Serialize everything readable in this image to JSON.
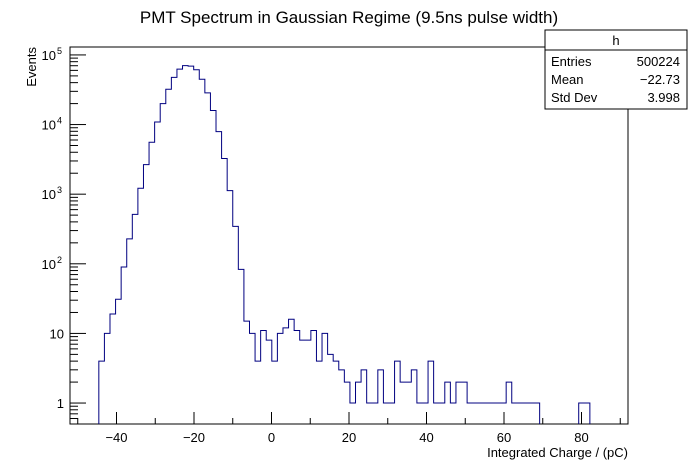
{
  "chart_data": {
    "type": "histogram",
    "title": "PMT Spectrum in Gaussian Regime (9.5ns pulse width)",
    "xlabel": "Integrated Charge / (pC)",
    "ylabel": "Events",
    "xlim": [
      -52,
      92
    ],
    "ylim": [
      0.5,
      130000
    ],
    "y_scale": "log",
    "x_ticks": [
      -40,
      -20,
      0,
      20,
      40,
      60,
      80
    ],
    "x_tick_labels": [
      "−40",
      "−20",
      "0",
      "20",
      "40",
      "60",
      "80"
    ],
    "y_ticks": [
      {
        "value": 1,
        "label": "1",
        "exp": ""
      },
      {
        "value": 10,
        "label": "10",
        "exp": ""
      },
      {
        "value": 100,
        "label": "10",
        "exp": "2"
      },
      {
        "value": 1000,
        "label": "10",
        "exp": "3"
      },
      {
        "value": 10000,
        "label": "10",
        "exp": "4"
      },
      {
        "value": 100000,
        "label": "10",
        "exp": "5"
      }
    ],
    "bin_width": 1.44,
    "bins_x_low": [
      -44.56,
      -43.12,
      -41.68,
      -40.24,
      -38.8,
      -37.36,
      -35.92,
      -34.48,
      -33.04,
      -31.6,
      -30.16,
      -28.72,
      -27.28,
      -25.84,
      -24.4,
      -22.96,
      -21.52,
      -20.08,
      -18.64,
      -17.2,
      -15.76,
      -14.32,
      -12.88,
      -11.44,
      -10.0,
      -8.56,
      -7.12,
      -5.68,
      -4.24,
      -2.8,
      -1.36,
      0.08,
      1.52,
      2.96,
      4.4,
      5.84,
      7.28,
      8.72,
      10.16,
      11.6,
      13.04,
      14.48,
      15.92,
      17.36,
      18.8,
      20.24,
      21.68,
      23.12,
      24.56,
      26.0,
      27.44,
      28.88,
      30.32,
      31.76,
      33.2,
      34.64,
      36.08,
      37.52,
      38.96,
      40.4,
      41.84,
      43.28,
      44.72,
      46.16,
      47.6,
      49.04,
      50.48,
      51.92,
      53.36,
      54.8,
      56.24,
      57.68,
      59.12,
      60.56,
      62.0,
      63.44,
      64.88,
      66.32,
      67.76,
      79.28,
      80.72
    ],
    "counts": [
      4,
      10,
      19,
      31,
      90,
      228,
      513,
      1218,
      2660,
      5570,
      10880,
      20020,
      32150,
      47650,
      62470,
      70110,
      69110,
      61180,
      44650,
      28480,
      15940,
      7900,
      3250,
      1125,
      345,
      83,
      15,
      10,
      4,
      11,
      8,
      4,
      10,
      12,
      16,
      11,
      8,
      8,
      11,
      4,
      10,
      5,
      4,
      3,
      2,
      1,
      2,
      3,
      1,
      1,
      3,
      1,
      1,
      4,
      2,
      2,
      3,
      1,
      1,
      4,
      1,
      1,
      2,
      1,
      2,
      2,
      1,
      1,
      1,
      1,
      1,
      1,
      1,
      2,
      1,
      1,
      1,
      1,
      1,
      1,
      1
    ],
    "line_color": "#000080"
  },
  "stats_box": {
    "name": "h",
    "entries_label": "Entries",
    "entries_value": "500224",
    "mean_label": "Mean",
    "mean_value": "−22.73",
    "std_label": "Std Dev",
    "std_value": "3.998"
  }
}
